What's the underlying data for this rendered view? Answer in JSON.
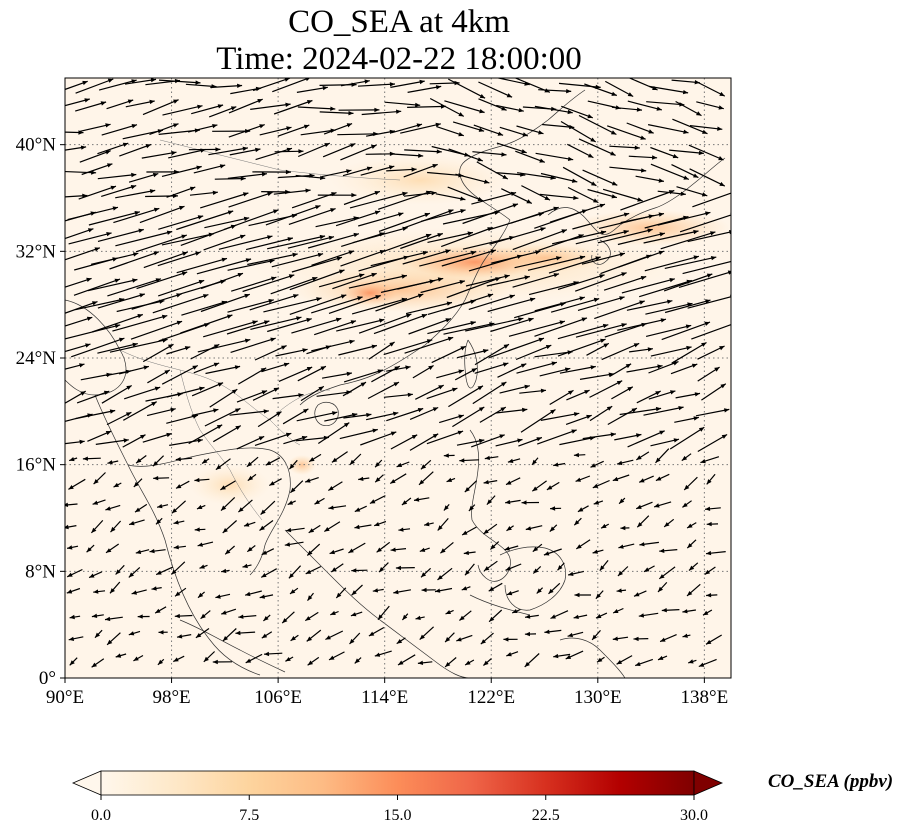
{
  "title": {
    "line1": "CO_SEA at 4km",
    "line2": "Time: 2024-02-22 18:00:00"
  },
  "map": {
    "lon_range": [
      90,
      140
    ],
    "lat_range": [
      0,
      45
    ],
    "x_ticks": [
      "90°E",
      "98°E",
      "106°E",
      "114°E",
      "122°E",
      "130°E",
      "138°E"
    ],
    "x_tick_values": [
      90,
      98,
      106,
      114,
      122,
      130,
      138
    ],
    "y_ticks": [
      "0°",
      "8°N",
      "16°N",
      "24°N",
      "32°N",
      "40°N"
    ],
    "y_tick_values": [
      0,
      8,
      16,
      24,
      32,
      40
    ],
    "gridlines": "dotted",
    "background_color": "#fff5e9",
    "coastline_color": "#333333",
    "arrow_color": "#000000"
  },
  "colorbar": {
    "label": "CO_SEA (ppbv)",
    "ticks": [
      "0.0",
      "7.5",
      "15.0",
      "22.5",
      "30.0"
    ],
    "tick_values": [
      0,
      7.5,
      15,
      22.5,
      30
    ],
    "range": [
      0,
      30
    ],
    "colormap": "OrRd",
    "extend": "both",
    "stops": [
      "#fff7ec",
      "#fee8c8",
      "#fdd49e",
      "#fdbb84",
      "#fc8d59",
      "#ef6548",
      "#d7301f",
      "#b30000",
      "#7f0000"
    ]
  }
}
